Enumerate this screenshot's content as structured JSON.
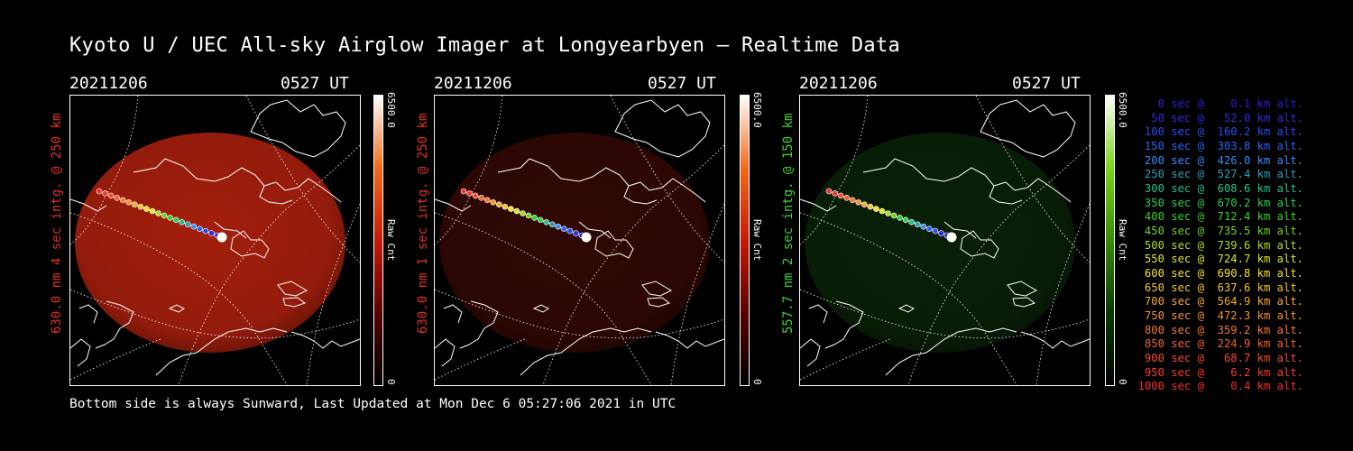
{
  "page": {
    "title": "Kyoto U / UEC All-sky Airglow Imager at Longyearbyen — Realtime Data"
  },
  "panels": [
    {
      "date": "20211206",
      "time": "0527 UT",
      "label": "630.0 nm 4 sec intg. @ 250 km",
      "label_color": "#e0302a",
      "colorbar_max": "6500.0",
      "colorbar_min": "0",
      "colorbar_unit": "Raw Cnt",
      "colormap": [
        "#ffffff",
        "#f26a18",
        "#c51a08",
        "#5a0000",
        "#000000"
      ],
      "intensity": 0.85,
      "tint": "#c0240f"
    },
    {
      "date": "20211206",
      "time": "0527 UT",
      "label": "630.0 nm 1 sec intg. @ 250 km",
      "label_color": "#e0302a",
      "colorbar_max": "6500.0",
      "colorbar_min": "0",
      "colorbar_unit": "Raw Cnt",
      "colormap": [
        "#ffffff",
        "#f26a18",
        "#c51a08",
        "#5a0000",
        "#000000"
      ],
      "intensity": 0.3,
      "tint": "#a01a0a"
    },
    {
      "date": "20211206",
      "time": "0527 UT",
      "label": "557.7 nm 2 sec intg. @ 150 km",
      "label_color": "#3fd035",
      "colorbar_max": "6500.0",
      "colorbar_min": "0",
      "colorbar_unit": "Raw Cnt",
      "colormap": [
        "#ffffff",
        "#7bd21a",
        "#3a8a0a",
        "#0a3a05",
        "#000000"
      ],
      "intensity": 0.3,
      "tint": "#1f6a18"
    }
  ],
  "trajectory_legend": [
    {
      "text": "   0 sec @    0.1 km alt.",
      "color": "#2a1fd8"
    },
    {
      "text": "  50 sec @   52.0 km alt.",
      "color": "#2a2fe0"
    },
    {
      "text": " 100 sec @  160.2 km alt.",
      "color": "#2a4af0"
    },
    {
      "text": " 150 sec @  303.8 km alt.",
      "color": "#2a63f5"
    },
    {
      "text": " 200 sec @  426.0 km alt.",
      "color": "#3a8af5"
    },
    {
      "text": " 250 sec @  527.4 km alt.",
      "color": "#2aa0b8"
    },
    {
      "text": " 300 sec @  608.6 km alt.",
      "color": "#27c08a"
    },
    {
      "text": " 350 sec @  670.2 km alt.",
      "color": "#2ad04f"
    },
    {
      "text": " 400 sec @  712.4 km alt.",
      "color": "#38d02a"
    },
    {
      "text": " 450 sec @  735.5 km alt.",
      "color": "#6fd425"
    },
    {
      "text": " 500 sec @  739.6 km alt.",
      "color": "#a8dc2a"
    },
    {
      "text": " 550 sec @  724.7 km alt.",
      "color": "#d8e82a"
    },
    {
      "text": " 600 sec @  690.8 km alt.",
      "color": "#f5e030"
    },
    {
      "text": " 650 sec @  637.6 km alt.",
      "color": "#f5c430"
    },
    {
      "text": " 700 sec @  564.9 km alt.",
      "color": "#f5aa30"
    },
    {
      "text": " 750 sec @  472.3 km alt.",
      "color": "#f59030"
    },
    {
      "text": " 800 sec @  359.2 km alt.",
      "color": "#f57830"
    },
    {
      "text": " 850 sec @  224.9 km alt.",
      "color": "#f56030"
    },
    {
      "text": " 900 sec @   68.7 km alt.",
      "color": "#f54a30"
    },
    {
      "text": " 950 sec @    6.2 km alt.",
      "color": "#f53a2e"
    },
    {
      "text": "1000 sec @    0.4 km alt.",
      "color": "#f52e2e"
    }
  ],
  "footer": "Bottom side is always Sunward, Last Updated at Mon Dec  6 05:27:06 2021 in UTC"
}
